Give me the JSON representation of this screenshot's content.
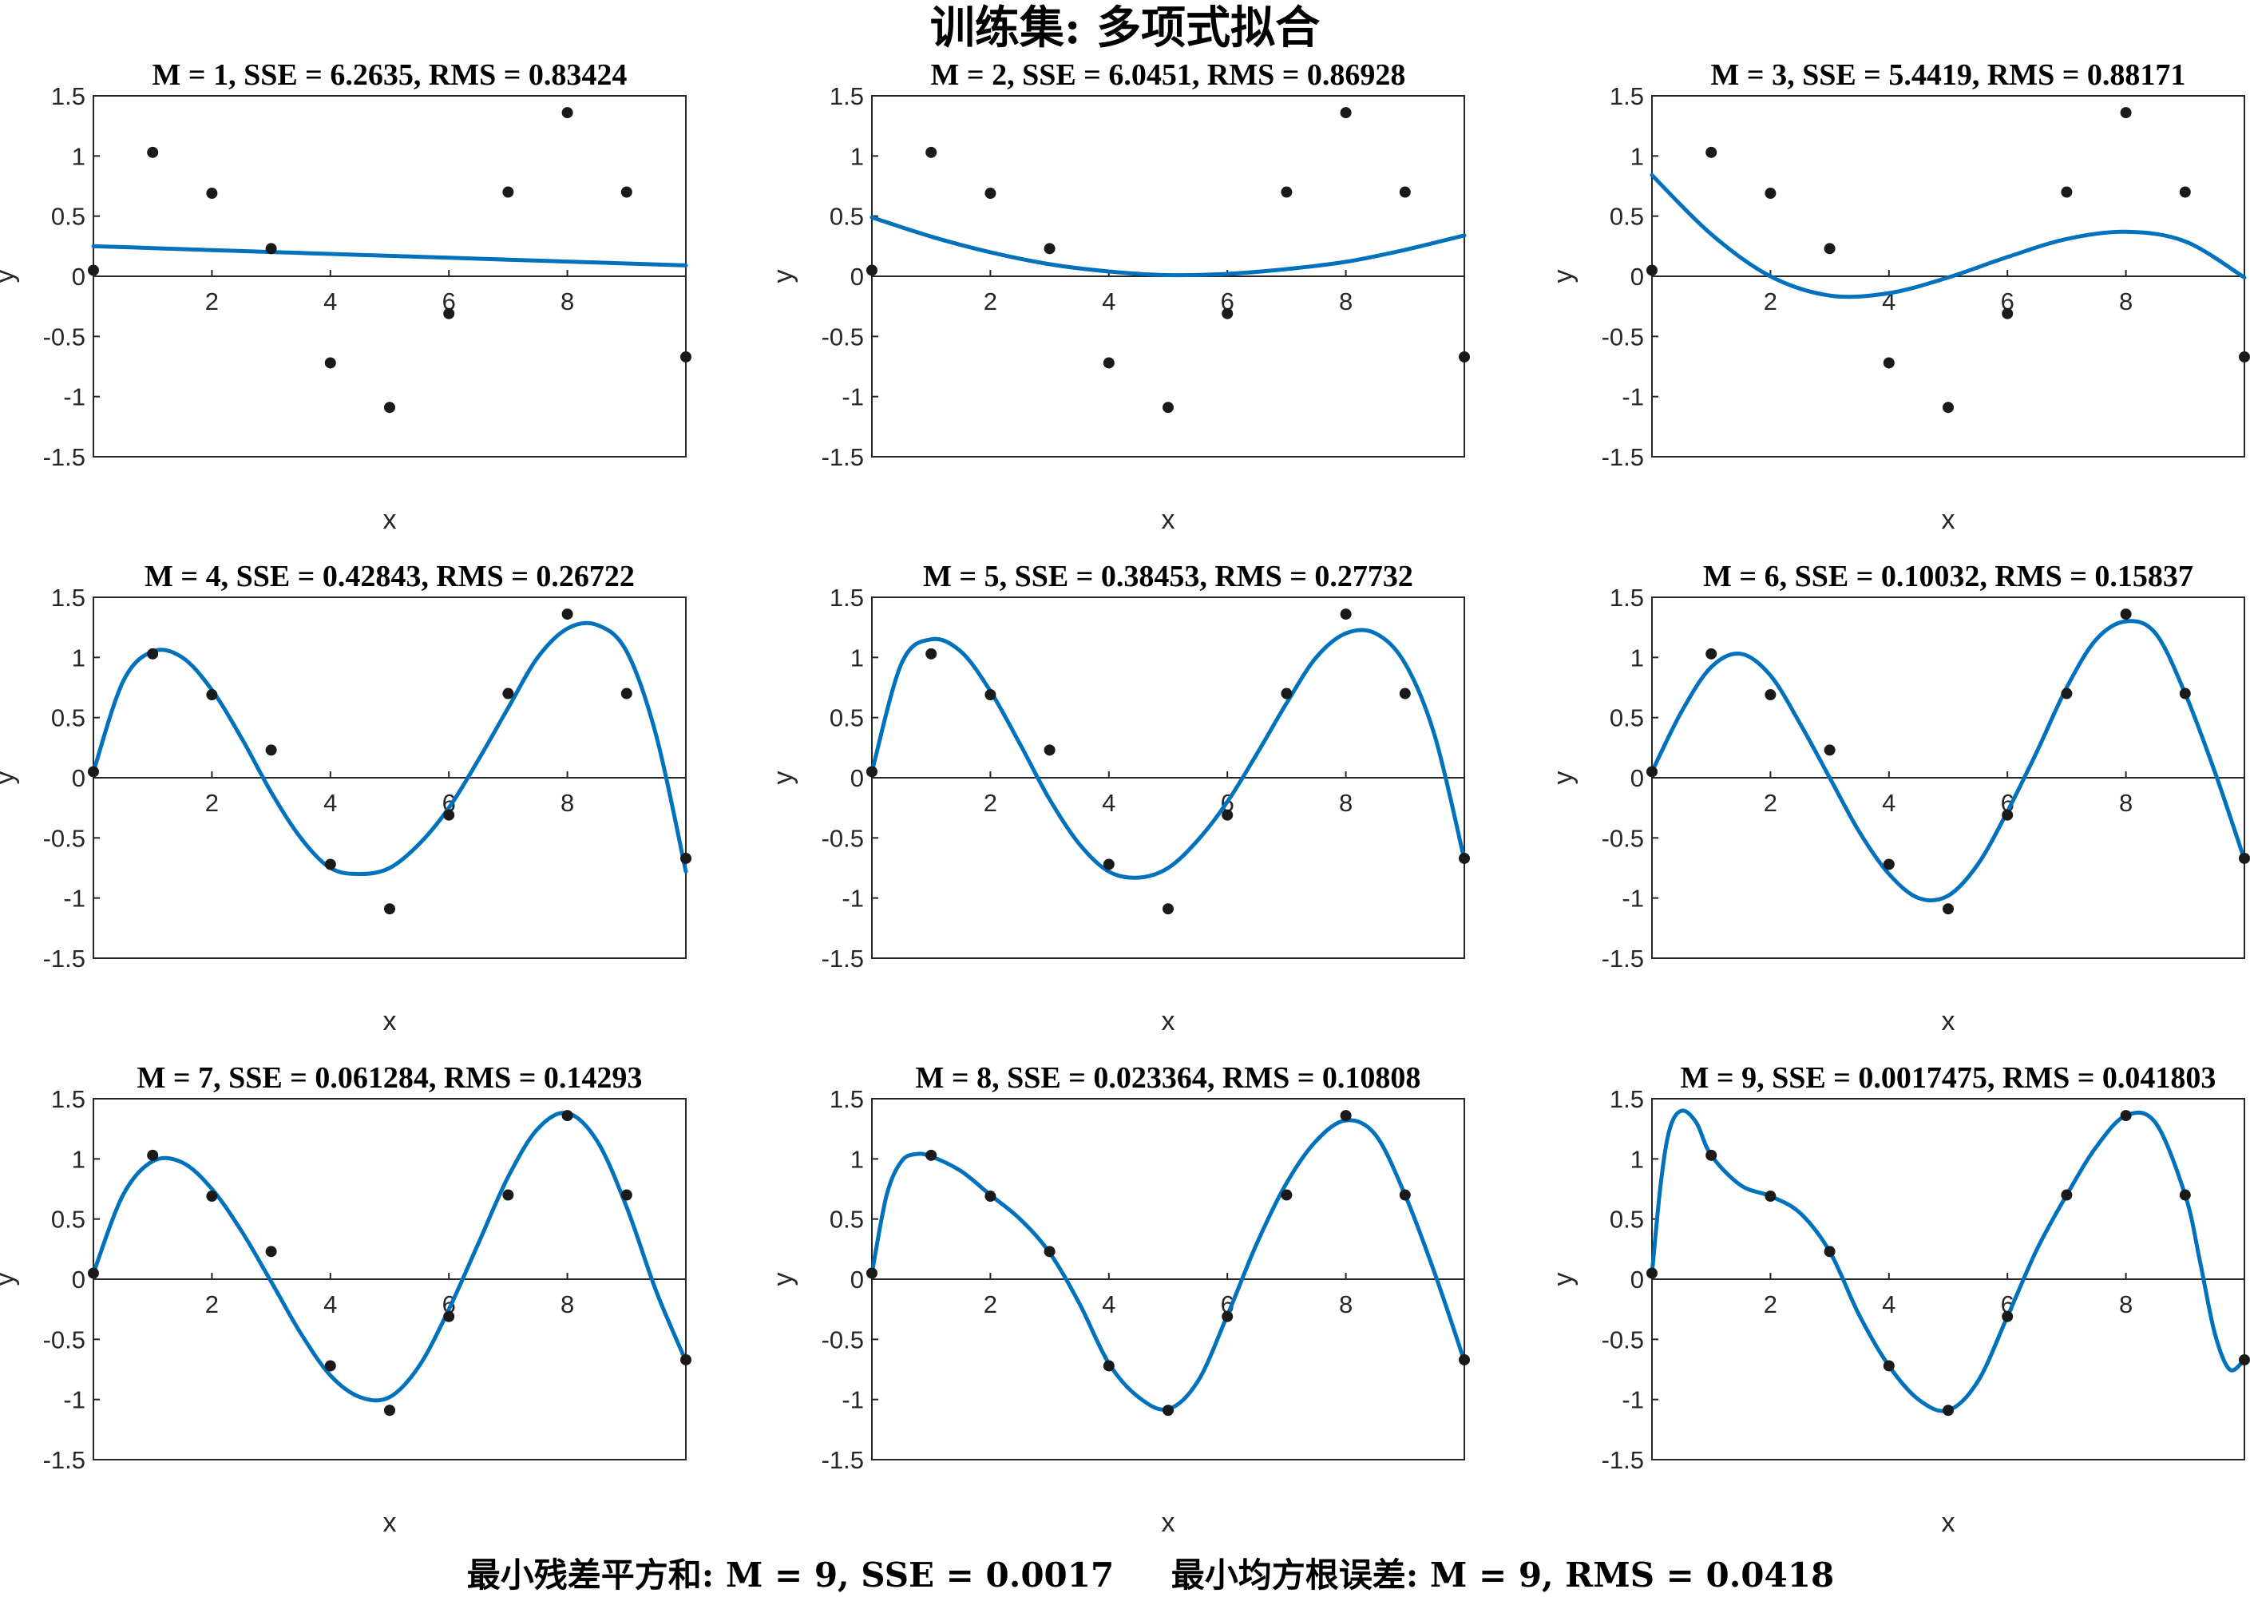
{
  "figure": {
    "title": "训练集: 多项式拟合",
    "footer_left": "最小残差平方和: M = 9, SSE = 0.0017",
    "footer_right": "最小均方根误差: M = 9, RMS = 0.0418"
  },
  "colors": {
    "curve": "#0072BD",
    "points": "#1a1a1a",
    "axes": "#262626",
    "background": "#ffffff"
  },
  "chart_data": [
    {
      "type": "line",
      "title": "M = 1, SSE = 6.2635, RMS = 0.83424",
      "xlabel": "x",
      "ylabel": "y",
      "xlim": [
        0,
        10
      ],
      "ylim": [
        -1.5,
        1.5
      ],
      "xticks": [
        2,
        4,
        6,
        8
      ],
      "yticks": [
        1.5,
        1,
        0.5,
        0,
        -0.5,
        -1,
        -1.5
      ],
      "xtick_labels": [
        "2",
        "4",
        "6",
        "8"
      ],
      "ytick_labels": [
        "1.5",
        "1",
        "0.5",
        "0",
        "-0.5",
        "-1",
        "-1.5"
      ],
      "points": {
        "x": [
          0,
          1,
          2,
          3,
          4,
          5,
          6,
          7,
          8,
          9,
          10
        ],
        "y": [
          0.05,
          1.03,
          0.69,
          0.23,
          -0.72,
          -1.09,
          -0.31,
          0.7,
          1.36,
          0.7,
          -0.67
        ]
      },
      "fit": {
        "x": [
          0,
          1,
          2,
          3,
          4,
          5,
          6,
          7,
          8,
          9,
          10
        ],
        "y": [
          0.25,
          0.234,
          0.218,
          0.202,
          0.186,
          0.17,
          0.154,
          0.138,
          0.122,
          0.106,
          0.09
        ]
      }
    },
    {
      "type": "line",
      "title": "M = 2, SSE = 6.0451, RMS = 0.86928",
      "xlabel": "x",
      "ylabel": "y",
      "xlim": [
        0,
        10
      ],
      "ylim": [
        -1.5,
        1.5
      ],
      "xticks": [
        2,
        4,
        6,
        8
      ],
      "yticks": [
        1.5,
        1,
        0.5,
        0,
        -0.5,
        -1,
        -1.5
      ],
      "xtick_labels": [
        "2",
        "4",
        "6",
        "8"
      ],
      "ytick_labels": [
        "1.5",
        "1",
        "0.5",
        "0",
        "-0.5",
        "-1",
        "-1.5"
      ],
      "points": {
        "x": [
          0,
          1,
          2,
          3,
          4,
          5,
          6,
          7,
          8,
          9,
          10
        ],
        "y": [
          0.05,
          1.03,
          0.69,
          0.23,
          -0.72,
          -1.09,
          -0.31,
          0.7,
          1.36,
          0.7,
          -0.67
        ]
      },
      "fit": {
        "x": [
          0,
          1,
          2,
          3,
          4,
          5,
          6,
          7,
          8,
          9,
          10
        ],
        "y": [
          0.49,
          0.33,
          0.2,
          0.1,
          0.04,
          0.01,
          0.02,
          0.06,
          0.12,
          0.22,
          0.34
        ]
      }
    },
    {
      "type": "line",
      "title": "M = 3, SSE = 5.4419, RMS = 0.88171",
      "xlabel": "x",
      "ylabel": "y",
      "xlim": [
        0,
        10
      ],
      "ylim": [
        -1.5,
        1.5
      ],
      "xticks": [
        2,
        4,
        6,
        8
      ],
      "yticks": [
        1.5,
        1,
        0.5,
        0,
        -0.5,
        -1,
        -1.5
      ],
      "xtick_labels": [
        "2",
        "4",
        "6",
        "8"
      ],
      "ytick_labels": [
        "1.5",
        "1",
        "0.5",
        "0",
        "-0.5",
        "-1",
        "-1.5"
      ],
      "points": {
        "x": [
          0,
          1,
          2,
          3,
          4,
          5,
          6,
          7,
          8,
          9,
          10
        ],
        "y": [
          0.05,
          1.03,
          0.69,
          0.23,
          -0.72,
          -1.09,
          -0.31,
          0.7,
          1.36,
          0.7,
          -0.67
        ]
      },
      "fit": {
        "x": [
          0,
          1,
          2,
          3,
          4,
          5,
          6,
          7,
          8,
          9,
          10
        ],
        "y": [
          0.84,
          0.35,
          0.0,
          -0.16,
          -0.14,
          -0.01,
          0.16,
          0.31,
          0.37,
          0.29,
          -0.01
        ]
      }
    },
    {
      "type": "line",
      "title": "M = 4, SSE = 0.42843, RMS = 0.26722",
      "xlabel": "x",
      "ylabel": "y",
      "xlim": [
        0,
        10
      ],
      "ylim": [
        -1.5,
        1.5
      ],
      "xticks": [
        2,
        4,
        6,
        8
      ],
      "yticks": [
        1.5,
        1,
        0.5,
        0,
        -0.5,
        -1,
        -1.5
      ],
      "xtick_labels": [
        "2",
        "4",
        "6",
        "8"
      ],
      "ytick_labels": [
        "1.5",
        "1",
        "0.5",
        "0",
        "-0.5",
        "-1",
        "-1.5"
      ],
      "points": {
        "x": [
          0,
          1,
          2,
          3,
          4,
          5,
          6,
          7,
          8,
          9,
          10
        ],
        "y": [
          0.05,
          1.03,
          0.69,
          0.23,
          -0.72,
          -1.09,
          -0.31,
          0.7,
          1.36,
          0.7,
          -0.67
        ]
      },
      "fit": {
        "x": [
          0,
          0.5,
          1,
          1.5,
          2,
          2.5,
          3,
          3.5,
          4,
          4.5,
          5,
          5.5,
          6,
          6.5,
          7,
          7.5,
          8,
          8.5,
          9,
          9.5,
          10
        ],
        "y": [
          0.05,
          0.8,
          1.05,
          1.0,
          0.73,
          0.33,
          -0.12,
          -0.5,
          -0.75,
          -0.8,
          -0.75,
          -0.55,
          -0.25,
          0.15,
          0.58,
          1.0,
          1.24,
          1.27,
          1.05,
          0.35,
          -0.78
        ]
      }
    },
    {
      "type": "line",
      "title": "M = 5, SSE = 0.38453, RMS = 0.27732",
      "xlabel": "x",
      "ylabel": "y",
      "xlim": [
        0,
        10
      ],
      "ylim": [
        -1.5,
        1.5
      ],
      "xticks": [
        2,
        4,
        6,
        8
      ],
      "yticks": [
        1.5,
        1,
        0.5,
        0,
        -0.5,
        -1,
        -1.5
      ],
      "xtick_labels": [
        "2",
        "4",
        "6",
        "8"
      ],
      "ytick_labels": [
        "1.5",
        "1",
        "0.5",
        "0",
        "-0.5",
        "-1",
        "-1.5"
      ],
      "points": {
        "x": [
          0,
          1,
          2,
          3,
          4,
          5,
          6,
          7,
          8,
          9,
          10
        ],
        "y": [
          0.05,
          1.03,
          0.69,
          0.23,
          -0.72,
          -1.09,
          -0.31,
          0.7,
          1.36,
          0.7,
          -0.67
        ]
      },
      "fit": {
        "x": [
          0,
          0.5,
          1,
          1.5,
          2,
          2.5,
          3,
          3.5,
          4,
          4.5,
          5,
          5.5,
          6,
          6.5,
          7,
          7.5,
          8,
          8.5,
          9,
          9.5,
          10
        ],
        "y": [
          0.05,
          0.95,
          1.15,
          1.05,
          0.72,
          0.28,
          -0.18,
          -0.55,
          -0.78,
          -0.83,
          -0.75,
          -0.52,
          -0.2,
          0.2,
          0.62,
          1.0,
          1.2,
          1.2,
          0.95,
          0.35,
          -0.68
        ]
      }
    },
    {
      "type": "line",
      "title": "M = 6, SSE = 0.10032, RMS = 0.15837",
      "xlabel": "x",
      "ylabel": "y",
      "xlim": [
        0,
        10
      ],
      "ylim": [
        -1.5,
        1.5
      ],
      "xticks": [
        2,
        4,
        6,
        8
      ],
      "yticks": [
        1.5,
        1,
        0.5,
        0,
        -0.5,
        -1,
        -1.5
      ],
      "xtick_labels": [
        "2",
        "4",
        "6",
        "8"
      ],
      "ytick_labels": [
        "1.5",
        "1",
        "0.5",
        "0",
        "-0.5",
        "-1",
        "-1.5"
      ],
      "points": {
        "x": [
          0,
          1,
          2,
          3,
          4,
          5,
          6,
          7,
          8,
          9,
          10
        ],
        "y": [
          0.05,
          1.03,
          0.69,
          0.23,
          -0.72,
          -1.09,
          -0.31,
          0.7,
          1.36,
          0.7,
          -0.67
        ]
      },
      "fit": {
        "x": [
          0,
          0.5,
          1,
          1.5,
          2,
          2.5,
          3,
          3.5,
          4,
          4.5,
          5,
          5.5,
          6,
          6.5,
          7,
          7.5,
          8,
          8.5,
          9,
          9.5,
          10
        ],
        "y": [
          0.05,
          0.55,
          0.92,
          1.03,
          0.85,
          0.45,
          0.0,
          -0.45,
          -0.8,
          -1.0,
          -0.98,
          -0.72,
          -0.28,
          0.22,
          0.75,
          1.15,
          1.3,
          1.2,
          0.7,
          0.05,
          -0.68
        ]
      }
    },
    {
      "type": "line",
      "title": "M = 7, SSE = 0.061284, RMS = 0.14293",
      "xlabel": "x",
      "ylabel": "y",
      "xlim": [
        0,
        10
      ],
      "ylim": [
        -1.5,
        1.5
      ],
      "xticks": [
        2,
        4,
        6,
        8
      ],
      "yticks": [
        1.5,
        1,
        0.5,
        0,
        -0.5,
        -1,
        -1.5
      ],
      "xtick_labels": [
        "2",
        "4",
        "6",
        "8"
      ],
      "ytick_labels": [
        "1.5",
        "1",
        "0.5",
        "0",
        "-0.5",
        "-1",
        "-1.5"
      ],
      "points": {
        "x": [
          0,
          1,
          2,
          3,
          4,
          5,
          6,
          7,
          8,
          9,
          10
        ],
        "y": [
          0.05,
          1.03,
          0.69,
          0.23,
          -0.72,
          -1.09,
          -0.31,
          0.7,
          1.36,
          0.7,
          -0.67
        ]
      },
      "fit": {
        "x": [
          0,
          0.5,
          1,
          1.5,
          2,
          2.5,
          3,
          3.5,
          4,
          4.5,
          5,
          5.5,
          6,
          6.5,
          7,
          7.5,
          8,
          8.5,
          9,
          9.5,
          10
        ],
        "y": [
          0.05,
          0.7,
          0.98,
          0.97,
          0.75,
          0.4,
          -0.02,
          -0.45,
          -0.8,
          -0.98,
          -0.98,
          -0.72,
          -0.25,
          0.3,
          0.85,
          1.25,
          1.38,
          1.15,
          0.6,
          -0.1,
          -0.68
        ]
      }
    },
    {
      "type": "line",
      "title": "M = 8, SSE = 0.023364, RMS = 0.10808",
      "xlabel": "x",
      "ylabel": "y",
      "xlim": [
        0,
        10
      ],
      "ylim": [
        -1.5,
        1.5
      ],
      "xticks": [
        2,
        4,
        6,
        8
      ],
      "yticks": [
        1.5,
        1,
        0.5,
        0,
        -0.5,
        -1,
        -1.5
      ],
      "xtick_labels": [
        "2",
        "4",
        "6",
        "8"
      ],
      "ytick_labels": [
        "1.5",
        "1",
        "0.5",
        "0",
        "-0.5",
        "-1",
        "-1.5"
      ],
      "points": {
        "x": [
          0,
          1,
          2,
          3,
          4,
          5,
          6,
          7,
          8,
          9,
          10
        ],
        "y": [
          0.05,
          1.03,
          0.69,
          0.23,
          -0.72,
          -1.09,
          -0.31,
          0.7,
          1.36,
          0.7,
          -0.67
        ]
      },
      "fit": {
        "x": [
          0,
          0.25,
          0.5,
          0.75,
          1,
          1.5,
          2,
          2.5,
          3,
          3.5,
          4,
          4.5,
          5,
          5.5,
          6,
          6.5,
          7,
          7.5,
          8,
          8.5,
          9,
          9.5,
          10
        ],
        "y": [
          0.05,
          0.7,
          0.98,
          1.04,
          1.02,
          0.9,
          0.7,
          0.5,
          0.22,
          -0.2,
          -0.7,
          -0.98,
          -1.08,
          -0.85,
          -0.3,
          0.3,
          0.8,
          1.15,
          1.32,
          1.2,
          0.7,
          0.05,
          -0.68
        ]
      }
    },
    {
      "type": "line",
      "title": "M = 9, SSE = 0.0017475, RMS = 0.041803",
      "xlabel": "x",
      "ylabel": "y",
      "xlim": [
        0,
        10
      ],
      "ylim": [
        -1.5,
        1.5
      ],
      "xticks": [
        2,
        4,
        6,
        8
      ],
      "yticks": [
        1.5,
        1,
        0.5,
        0,
        -0.5,
        -1,
        -1.5
      ],
      "xtick_labels": [
        "2",
        "4",
        "6",
        "8"
      ],
      "ytick_labels": [
        "1.5",
        "1",
        "0.5",
        "0",
        "-0.5",
        "-1",
        "-1.5"
      ],
      "points": {
        "x": [
          0,
          1,
          2,
          3,
          4,
          5,
          6,
          7,
          8,
          9,
          10
        ],
        "y": [
          0.05,
          1.03,
          0.69,
          0.23,
          -0.72,
          -1.09,
          -0.31,
          0.7,
          1.36,
          0.7,
          -0.67
        ]
      },
      "fit": {
        "x": [
          0,
          0.15,
          0.3,
          0.5,
          0.75,
          1,
          1.5,
          2,
          2.5,
          3,
          3.5,
          4,
          4.5,
          5,
          5.5,
          6,
          6.5,
          7,
          7.5,
          8,
          8.5,
          9,
          9.25,
          9.5,
          9.75,
          10
        ],
        "y": [
          0.05,
          0.8,
          1.25,
          1.4,
          1.3,
          1.03,
          0.78,
          0.69,
          0.55,
          0.23,
          -0.3,
          -0.72,
          -1.0,
          -1.09,
          -0.85,
          -0.31,
          0.25,
          0.7,
          1.1,
          1.36,
          1.3,
          0.7,
          0.15,
          -0.45,
          -0.75,
          -0.67
        ]
      }
    }
  ]
}
